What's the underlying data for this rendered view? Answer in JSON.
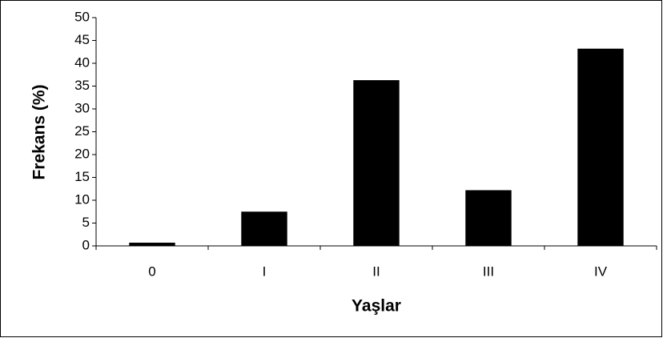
{
  "chart_data": {
    "type": "bar",
    "categories": [
      "0",
      "I",
      "II",
      "III",
      "IV"
    ],
    "values": [
      0.7,
      7.5,
      36.3,
      12.2,
      43.2
    ],
    "color": "#000000",
    "ylim": [
      0,
      50
    ],
    "yticks": [
      0,
      5,
      10,
      15,
      20,
      25,
      30,
      35,
      40,
      45,
      50
    ],
    "grid": false,
    "xlabel": "Yaşlar",
    "ylabel": "Frekans (%)"
  }
}
